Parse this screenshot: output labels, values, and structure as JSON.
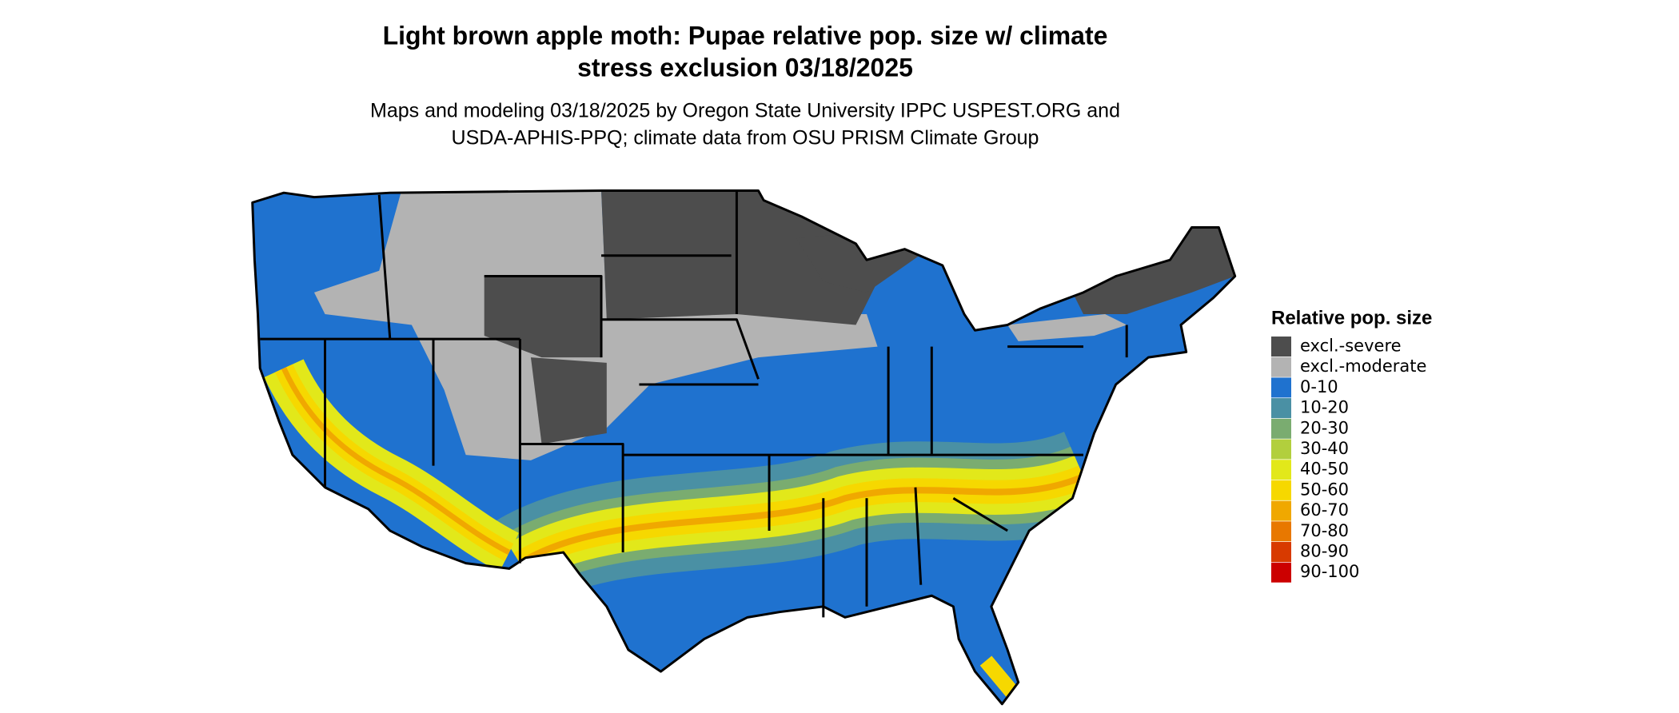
{
  "title": [
    "Light brown apple moth: Pupae relative pop. size w/ climate",
    "stress exclusion 03/18/2025"
  ],
  "subtitle": [
    "Maps and modeling 03/18/2025 by Oregon State University IPPC USPEST.ORG and",
    "USDA-APHIS-PPQ; climate data from OSU PRISM Climate Group"
  ],
  "legend": {
    "title": "Relative pop. size",
    "items": [
      {
        "label": "excl.-severe",
        "color": "#4d4d4d"
      },
      {
        "label": "excl.-moderate",
        "color": "#b3b3b3"
      },
      {
        "label": "0-10",
        "color": "#1f72cf"
      },
      {
        "label": "10-20",
        "color": "#4a90a4"
      },
      {
        "label": "20-30",
        "color": "#7aac70"
      },
      {
        "label": "30-40",
        "color": "#b2cf3d"
      },
      {
        "label": "40-50",
        "color": "#e2e81a"
      },
      {
        "label": "50-60",
        "color": "#f6d800"
      },
      {
        "label": "60-70",
        "color": "#f0a800"
      },
      {
        "label": "70-80",
        "color": "#e87800"
      },
      {
        "label": "80-90",
        "color": "#d83a00"
      },
      {
        "label": "90-100",
        "color": "#cc0000"
      }
    ]
  }
}
